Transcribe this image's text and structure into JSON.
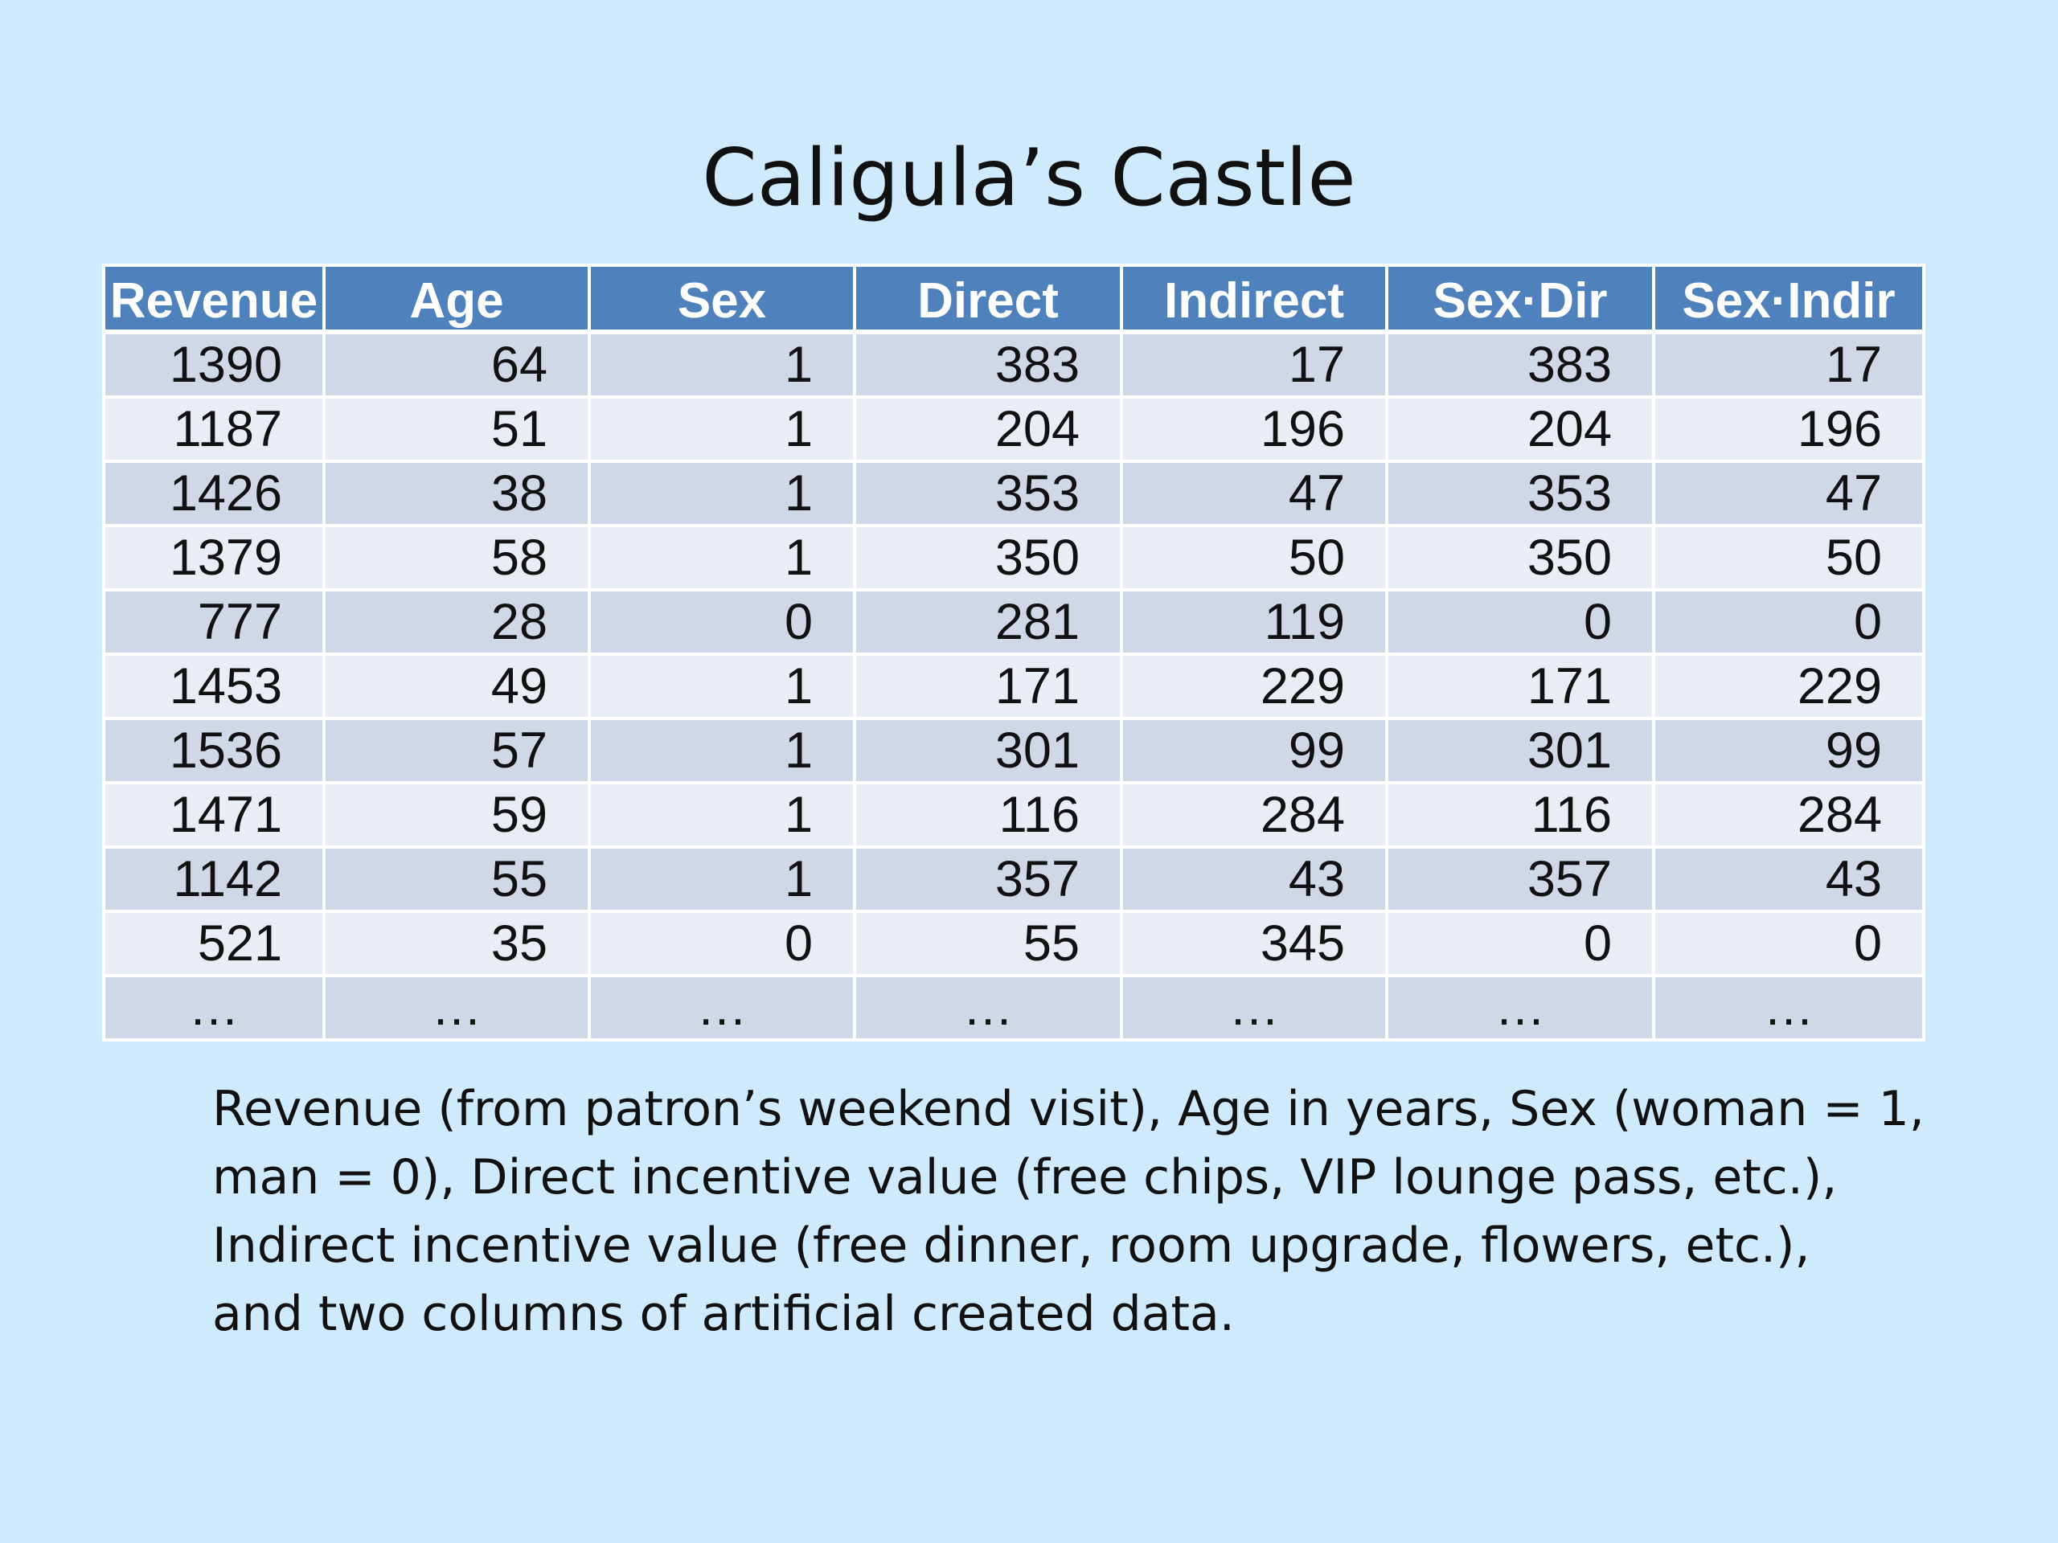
{
  "slide": {
    "title": "Caligula’s Castle"
  },
  "table": {
    "headers": [
      "Revenue",
      "Age",
      "Sex",
      "Direct",
      "Indirect",
      "Sex·Dir",
      "Sex·Indir"
    ],
    "rows": [
      [
        "1390",
        "64",
        "1",
        "383",
        "17",
        "383",
        "17"
      ],
      [
        "1187",
        "51",
        "1",
        "204",
        "196",
        "204",
        "196"
      ],
      [
        "1426",
        "38",
        "1",
        "353",
        "47",
        "353",
        "47"
      ],
      [
        "1379",
        "58",
        "1",
        "350",
        "50",
        "350",
        "50"
      ],
      [
        "777",
        "28",
        "0",
        "281",
        "119",
        "0",
        "0"
      ],
      [
        "1453",
        "49",
        "1",
        "171",
        "229",
        "171",
        "229"
      ],
      [
        "1536",
        "57",
        "1",
        "301",
        "99",
        "301",
        "99"
      ],
      [
        "1471",
        "59",
        "1",
        "116",
        "284",
        "116",
        "284"
      ],
      [
        "1142",
        "55",
        "1",
        "357",
        "43",
        "357",
        "43"
      ],
      [
        "521",
        "35",
        "0",
        "55",
        "345",
        "0",
        "0"
      ]
    ],
    "ellipsis": [
      "…",
      "…",
      "…",
      "…",
      "…",
      "…",
      "…"
    ]
  },
  "caption": {
    "lines": [
      "Revenue (from patron’s weekend visit), Age in years, Sex (woman = 1,",
      "man = 0), Direct incentive value (free chips, VIP lounge pass, etc.),",
      "Indirect incentive value (free dinner, room upgrade, flowers, etc.),",
      "and two columns of artificial created data."
    ]
  },
  "colors": {
    "background": "#cfe9fd",
    "header": "#4f81bd",
    "row_dark": "#d0d8e8",
    "row_light": "#e9edf4"
  }
}
